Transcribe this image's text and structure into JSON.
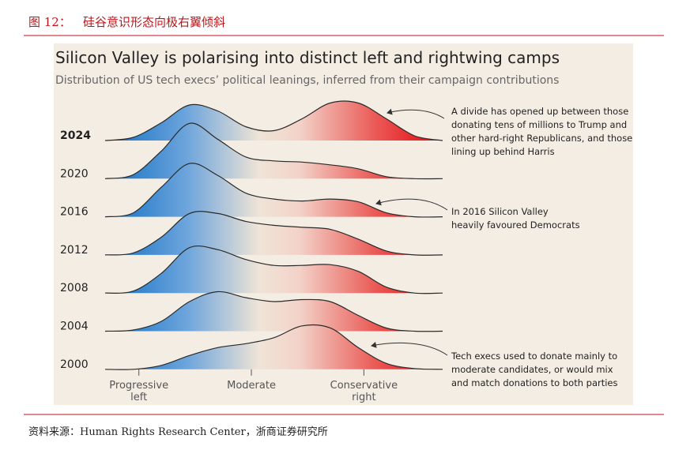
{
  "header": {
    "figure_label": "图 12：",
    "title": "硅谷意识形态向极右翼倾斜"
  },
  "source": "资料来源：Human Rights Research Center，浙商证券研究所",
  "chart_data": {
    "type": "ridgeline",
    "title": "Silicon Valley is polarising into distinct left and rightwing camps",
    "subtitle": "Distribution of US tech execs’ political leanings, inferred from their campaign contributions",
    "x": [
      -1.3,
      -1.05,
      -0.8,
      -0.55,
      -0.3,
      -0.05,
      0.2,
      0.45,
      0.7,
      0.95,
      1.2,
      1.45,
      1.7
    ],
    "xlim": [
      -1.3,
      1.7
    ],
    "xticks": [
      {
        "value": -1,
        "label": "Progressive\nleft"
      },
      {
        "value": 0,
        "label": "Moderate"
      },
      {
        "value": 1,
        "label": "Conservative\nright"
      }
    ],
    "series": [
      {
        "name": "2024",
        "values": [
          0,
          0.08,
          0.45,
          0.9,
          0.75,
          0.35,
          0.25,
          0.55,
          0.95,
          0.95,
          0.55,
          0.12,
          0
        ]
      },
      {
        "name": "2020",
        "values": [
          0,
          0.1,
          0.7,
          1.4,
          1.0,
          0.55,
          0.45,
          0.42,
          0.35,
          0.25,
          0.05,
          0,
          0
        ]
      },
      {
        "name": "2016",
        "values": [
          0,
          0.1,
          0.75,
          1.35,
          1.05,
          0.6,
          0.45,
          0.4,
          0.45,
          0.38,
          0.1,
          0,
          0
        ]
      },
      {
        "name": "2012",
        "values": [
          0,
          0.05,
          0.45,
          1.05,
          1.05,
          0.85,
          0.75,
          0.7,
          0.65,
          0.4,
          0.1,
          0,
          0
        ]
      },
      {
        "name": "2008",
        "values": [
          0,
          0.05,
          0.5,
          1.15,
          1.1,
          0.85,
          0.7,
          0.7,
          0.72,
          0.55,
          0.15,
          0,
          0
        ]
      },
      {
        "name": "2004",
        "values": [
          0,
          0.03,
          0.25,
          0.75,
          1.0,
          0.85,
          0.75,
          0.8,
          0.75,
          0.4,
          0.08,
          0,
          0
        ]
      },
      {
        "name": "2000",
        "values": [
          0,
          0,
          0.1,
          0.35,
          0.55,
          0.65,
          0.8,
          1.1,
          1.05,
          0.55,
          0.15,
          0.02,
          0
        ]
      }
    ],
    "annotations": [
      [
        "A divide has opened up between those",
        "donating tens of millions to Trump and",
        "other hard-right Republicans, and those",
        "lining up behind Harris"
      ],
      [
        "In 2016 Silicon Valley",
        "heavily favoured Democrats"
      ],
      [
        "Tech execs used to donate mainly to",
        "moderate candidates, or would mix",
        "and match donations to both parties"
      ]
    ]
  }
}
